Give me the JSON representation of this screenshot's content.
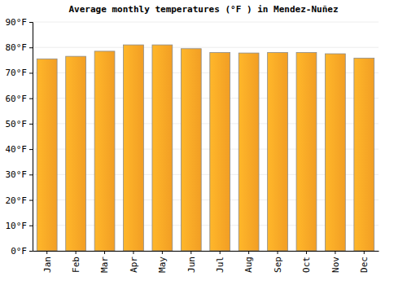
{
  "chart_data": {
    "type": "bar",
    "title": "Average monthly temperatures (°F ) in Mendez-Nuñez",
    "categories": [
      "Jan",
      "Feb",
      "Mar",
      "Apr",
      "May",
      "Jun",
      "Jul",
      "Aug",
      "Sep",
      "Oct",
      "Nov",
      "Dec"
    ],
    "values": [
      75.5,
      76.5,
      78.5,
      81,
      81,
      79.5,
      78,
      77.8,
      78,
      78,
      77.5,
      75.8
    ],
    "color": "#ffa726",
    "ylim": [
      0,
      90
    ],
    "yticks": [
      {
        "value": 0,
        "label": "0°F"
      },
      {
        "value": 10,
        "label": "10°F"
      },
      {
        "value": 20,
        "label": "20°F"
      },
      {
        "value": 30,
        "label": "30°F"
      },
      {
        "value": 40,
        "label": "40°F"
      },
      {
        "value": 50,
        "label": "50°F"
      },
      {
        "value": 60,
        "label": "60°F"
      },
      {
        "value": 70,
        "label": "70°F"
      },
      {
        "value": 80,
        "label": "80°F"
      },
      {
        "value": 90,
        "label": "90°F"
      }
    ],
    "grid": true
  }
}
